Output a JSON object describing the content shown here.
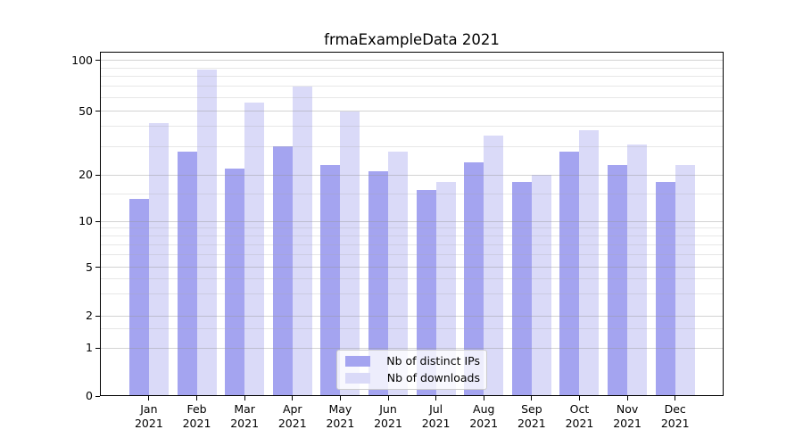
{
  "chart_data": {
    "type": "bar",
    "title": "frmaExampleData 2021",
    "categories": [
      "Jan",
      "Feb",
      "Mar",
      "Apr",
      "May",
      "Jun",
      "Jul",
      "Aug",
      "Sep",
      "Oct",
      "Nov",
      "Dec"
    ],
    "category_year": "2021",
    "series": [
      {
        "name": "Nb of distinct IPs",
        "color": "#a4a4f0",
        "values": [
          14,
          28,
          22,
          30,
          23,
          21,
          16,
          24,
          18,
          28,
          23,
          18
        ]
      },
      {
        "name": "Nb of downloads",
        "color": "#dadaf8",
        "values": [
          42,
          88,
          56,
          70,
          50,
          28,
          18,
          35,
          20,
          38,
          31,
          23
        ]
      }
    ],
    "xlabel": "",
    "ylabel": "",
    "yscale": "asinh",
    "yticks": [
      0,
      1,
      2,
      5,
      10,
      20,
      50,
      100
    ],
    "ylim": [
      0,
      115
    ],
    "grid": "horizontal major and minor lines, drawn over bars",
    "legend_position": "lower center inside plot"
  }
}
